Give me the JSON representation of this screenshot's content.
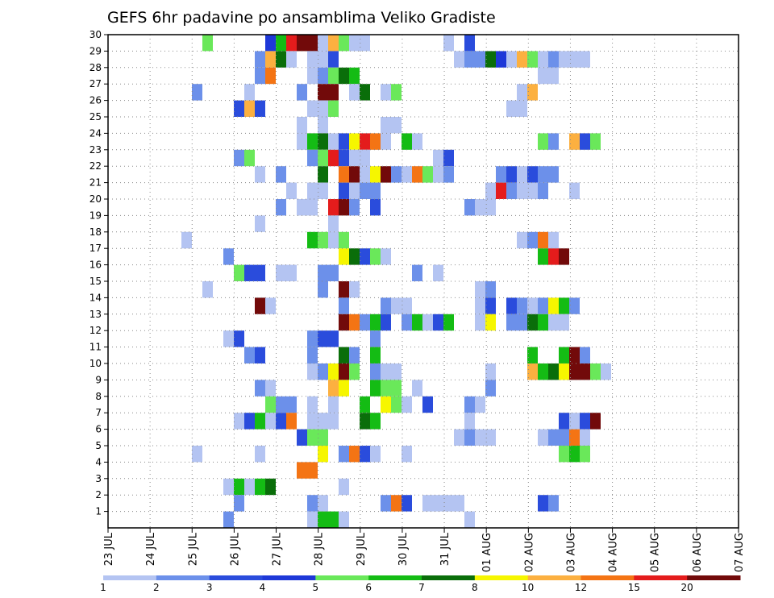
{
  "chart_data": {
    "type": "heatmap",
    "title": "GEFS 6hr padavine po ansamblima Veliko Gradiste",
    "ylim": [
      0,
      30
    ],
    "ytick_labels": [
      "1",
      "2",
      "3",
      "4",
      "5",
      "6",
      "7",
      "8",
      "9",
      "10",
      "11",
      "12",
      "13",
      "14",
      "15",
      "16",
      "17",
      "18",
      "19",
      "20",
      "21",
      "22",
      "23",
      "24",
      "25",
      "26",
      "27",
      "28",
      "29",
      "30"
    ],
    "x_tick_labels": [
      "23 JUL",
      "24 JUL",
      "25 JUL",
      "26 JUL",
      "27 JUL",
      "28 JUL",
      "29 JUL",
      "30 JUL",
      "31 JUL",
      "01 AUG",
      "02 AUG",
      "03 AUG",
      "04 AUG",
      "05 AUG",
      "06 AUG",
      "07 AUG"
    ],
    "grid": true,
    "color_scale": {
      "colors": [
        "#b4c4f2",
        "#6c90ea",
        "#2a4cdc",
        "#1e38d8",
        "#6ae85a",
        "#14bc14",
        "#0a6e0a",
        "#f6f600",
        "#fcb040",
        "#f47414",
        "#e41c1c",
        "#720a0a"
      ],
      "labels": [
        "1",
        "2",
        "3",
        "4",
        "5",
        "6",
        "7",
        "8",
        "10",
        "12",
        "15",
        "20"
      ]
    },
    "cells": [
      [
        30,
        9,
        5
      ],
      [
        30,
        15,
        4
      ],
      [
        30,
        16,
        6
      ],
      [
        30,
        17,
        11
      ],
      [
        30,
        18,
        12
      ],
      [
        30,
        19,
        12
      ],
      [
        30,
        20,
        1
      ],
      [
        30,
        21,
        9
      ],
      [
        30,
        22,
        5
      ],
      [
        30,
        23,
        1
      ],
      [
        30,
        24,
        1
      ],
      [
        30,
        32,
        1
      ],
      [
        30,
        34,
        3
      ],
      [
        29,
        14,
        2
      ],
      [
        29,
        15,
        9
      ],
      [
        29,
        16,
        7
      ],
      [
        29,
        17,
        1
      ],
      [
        29,
        19,
        1
      ],
      [
        29,
        20,
        1
      ],
      [
        29,
        21,
        3
      ],
      [
        29,
        33,
        1
      ],
      [
        29,
        34,
        2
      ],
      [
        29,
        35,
        2
      ],
      [
        29,
        36,
        7
      ],
      [
        29,
        37,
        4
      ],
      [
        29,
        38,
        1
      ],
      [
        29,
        39,
        9
      ],
      [
        29,
        40,
        5
      ],
      [
        29,
        41,
        1
      ],
      [
        29,
        42,
        2
      ],
      [
        29,
        43,
        1
      ],
      [
        29,
        44,
        1
      ],
      [
        29,
        45,
        1
      ],
      [
        28,
        14,
        2
      ],
      [
        28,
        15,
        10
      ],
      [
        28,
        19,
        1
      ],
      [
        28,
        20,
        2
      ],
      [
        28,
        21,
        5
      ],
      [
        28,
        22,
        7
      ],
      [
        28,
        23,
        6
      ],
      [
        28,
        41,
        1
      ],
      [
        28,
        42,
        1
      ],
      [
        27,
        8,
        2
      ],
      [
        27,
        13,
        1
      ],
      [
        27,
        18,
        2
      ],
      [
        27,
        20,
        12
      ],
      [
        27,
        21,
        12
      ],
      [
        27,
        23,
        1
      ],
      [
        27,
        24,
        7
      ],
      [
        27,
        26,
        1
      ],
      [
        27,
        27,
        5
      ],
      [
        27,
        39,
        1
      ],
      [
        27,
        40,
        9
      ],
      [
        26,
        12,
        3
      ],
      [
        26,
        13,
        9
      ],
      [
        26,
        14,
        3
      ],
      [
        26,
        19,
        1
      ],
      [
        26,
        20,
        1
      ],
      [
        26,
        21,
        5
      ],
      [
        26,
        38,
        1
      ],
      [
        26,
        39,
        1
      ],
      [
        25,
        18,
        1
      ],
      [
        25,
        20,
        1
      ],
      [
        25,
        26,
        1
      ],
      [
        25,
        27,
        1
      ],
      [
        24,
        18,
        1
      ],
      [
        24,
        19,
        6
      ],
      [
        24,
        20,
        7
      ],
      [
        24,
        21,
        1
      ],
      [
        24,
        22,
        3
      ],
      [
        24,
        23,
        8
      ],
      [
        24,
        24,
        11
      ],
      [
        24,
        25,
        10
      ],
      [
        24,
        26,
        1
      ],
      [
        24,
        28,
        6
      ],
      [
        24,
        29,
        1
      ],
      [
        24,
        41,
        5
      ],
      [
        24,
        42,
        2
      ],
      [
        24,
        44,
        9
      ],
      [
        24,
        45,
        3
      ],
      [
        24,
        46,
        5
      ],
      [
        23,
        12,
        2
      ],
      [
        23,
        13,
        5
      ],
      [
        23,
        19,
        2
      ],
      [
        23,
        20,
        5
      ],
      [
        23,
        21,
        11
      ],
      [
        23,
        22,
        3
      ],
      [
        23,
        23,
        1
      ],
      [
        23,
        24,
        1
      ],
      [
        23,
        31,
        1
      ],
      [
        23,
        32,
        3
      ],
      [
        22,
        14,
        1
      ],
      [
        22,
        16,
        2
      ],
      [
        22,
        20,
        7
      ],
      [
        22,
        22,
        10
      ],
      [
        22,
        23,
        12
      ],
      [
        22,
        24,
        1
      ],
      [
        22,
        25,
        8
      ],
      [
        22,
        26,
        12
      ],
      [
        22,
        27,
        2
      ],
      [
        22,
        28,
        1
      ],
      [
        22,
        29,
        10
      ],
      [
        22,
        30,
        5
      ],
      [
        22,
        31,
        1
      ],
      [
        22,
        32,
        2
      ],
      [
        22,
        37,
        2
      ],
      [
        22,
        38,
        3
      ],
      [
        22,
        39,
        1
      ],
      [
        22,
        40,
        3
      ],
      [
        22,
        41,
        2
      ],
      [
        22,
        42,
        2
      ],
      [
        21,
        17,
        1
      ],
      [
        21,
        19,
        1
      ],
      [
        21,
        20,
        1
      ],
      [
        21,
        22,
        3
      ],
      [
        21,
        23,
        1
      ],
      [
        21,
        24,
        2
      ],
      [
        21,
        25,
        2
      ],
      [
        21,
        36,
        1
      ],
      [
        21,
        37,
        11
      ],
      [
        21,
        38,
        2
      ],
      [
        21,
        39,
        1
      ],
      [
        21,
        40,
        1
      ],
      [
        21,
        41,
        2
      ],
      [
        21,
        44,
        1
      ],
      [
        20,
        16,
        2
      ],
      [
        20,
        18,
        1
      ],
      [
        20,
        19,
        1
      ],
      [
        20,
        21,
        11
      ],
      [
        20,
        22,
        12
      ],
      [
        20,
        23,
        2
      ],
      [
        20,
        25,
        3
      ],
      [
        20,
        34,
        2
      ],
      [
        20,
        35,
        1
      ],
      [
        20,
        36,
        1
      ],
      [
        19,
        14,
        1
      ],
      [
        19,
        21,
        1
      ],
      [
        18,
        7,
        1
      ],
      [
        18,
        19,
        6
      ],
      [
        18,
        20,
        5
      ],
      [
        18,
        21,
        1
      ],
      [
        18,
        22,
        5
      ],
      [
        18,
        39,
        1
      ],
      [
        18,
        40,
        2
      ],
      [
        18,
        41,
        10
      ],
      [
        18,
        42,
        1
      ],
      [
        17,
        11,
        2
      ],
      [
        17,
        22,
        8
      ],
      [
        17,
        23,
        7
      ],
      [
        17,
        24,
        3
      ],
      [
        17,
        25,
        5
      ],
      [
        17,
        26,
        1
      ],
      [
        17,
        41,
        6
      ],
      [
        17,
        42,
        11
      ],
      [
        17,
        43,
        12
      ],
      [
        16,
        12,
        5
      ],
      [
        16,
        13,
        3
      ],
      [
        16,
        14,
        3
      ],
      [
        16,
        16,
        1
      ],
      [
        16,
        17,
        1
      ],
      [
        16,
        20,
        2
      ],
      [
        16,
        21,
        2
      ],
      [
        16,
        29,
        2
      ],
      [
        16,
        31,
        1
      ],
      [
        15,
        9,
        1
      ],
      [
        15,
        20,
        2
      ],
      [
        15,
        22,
        12
      ],
      [
        15,
        23,
        1
      ],
      [
        15,
        35,
        1
      ],
      [
        15,
        36,
        2
      ],
      [
        14,
        14,
        12
      ],
      [
        14,
        15,
        1
      ],
      [
        14,
        22,
        2
      ],
      [
        14,
        26,
        2
      ],
      [
        14,
        27,
        1
      ],
      [
        14,
        28,
        1
      ],
      [
        14,
        35,
        1
      ],
      [
        14,
        36,
        3
      ],
      [
        14,
        38,
        3
      ],
      [
        14,
        39,
        2
      ],
      [
        14,
        40,
        1
      ],
      [
        14,
        41,
        2
      ],
      [
        14,
        42,
        8
      ],
      [
        14,
        43,
        6
      ],
      [
        14,
        44,
        2
      ],
      [
        13,
        22,
        12
      ],
      [
        13,
        23,
        10
      ],
      [
        13,
        24,
        2
      ],
      [
        13,
        25,
        6
      ],
      [
        13,
        26,
        3
      ],
      [
        13,
        28,
        2
      ],
      [
        13,
        29,
        6
      ],
      [
        13,
        30,
        1
      ],
      [
        13,
        31,
        3
      ],
      [
        13,
        32,
        6
      ],
      [
        13,
        35,
        1
      ],
      [
        13,
        36,
        8
      ],
      [
        13,
        38,
        2
      ],
      [
        13,
        39,
        2
      ],
      [
        13,
        40,
        7
      ],
      [
        13,
        41,
        6
      ],
      [
        13,
        42,
        1
      ],
      [
        13,
        43,
        1
      ],
      [
        12,
        11,
        1
      ],
      [
        12,
        12,
        3
      ],
      [
        12,
        19,
        2
      ],
      [
        12,
        20,
        3
      ],
      [
        12,
        21,
        3
      ],
      [
        12,
        25,
        2
      ],
      [
        11,
        13,
        2
      ],
      [
        11,
        14,
        3
      ],
      [
        11,
        19,
        2
      ],
      [
        11,
        22,
        7
      ],
      [
        11,
        23,
        2
      ],
      [
        11,
        25,
        6
      ],
      [
        11,
        40,
        6
      ],
      [
        11,
        43,
        6
      ],
      [
        11,
        44,
        12
      ],
      [
        11,
        45,
        2
      ],
      [
        10,
        19,
        1
      ],
      [
        10,
        20,
        2
      ],
      [
        10,
        21,
        8
      ],
      [
        10,
        22,
        12
      ],
      [
        10,
        23,
        5
      ],
      [
        10,
        25,
        2
      ],
      [
        10,
        26,
        1
      ],
      [
        10,
        27,
        1
      ],
      [
        10,
        36,
        1
      ],
      [
        10,
        40,
        9
      ],
      [
        10,
        41,
        6
      ],
      [
        10,
        42,
        7
      ],
      [
        10,
        43,
        8
      ],
      [
        10,
        44,
        12
      ],
      [
        10,
        45,
        12
      ],
      [
        10,
        46,
        5
      ],
      [
        10,
        47,
        1
      ],
      [
        9,
        14,
        2
      ],
      [
        9,
        15,
        1
      ],
      [
        9,
        21,
        9
      ],
      [
        9,
        22,
        8
      ],
      [
        9,
        25,
        6
      ],
      [
        9,
        26,
        5
      ],
      [
        9,
        27,
        5
      ],
      [
        9,
        29,
        1
      ],
      [
        9,
        36,
        2
      ],
      [
        8,
        15,
        5
      ],
      [
        8,
        16,
        2
      ],
      [
        8,
        17,
        2
      ],
      [
        8,
        19,
        1
      ],
      [
        8,
        21,
        1
      ],
      [
        8,
        24,
        6
      ],
      [
        8,
        26,
        8
      ],
      [
        8,
        27,
        5
      ],
      [
        8,
        28,
        1
      ],
      [
        8,
        30,
        3
      ],
      [
        8,
        34,
        2
      ],
      [
        8,
        35,
        1
      ],
      [
        7,
        12,
        1
      ],
      [
        7,
        13,
        3
      ],
      [
        7,
        14,
        6
      ],
      [
        7,
        15,
        1
      ],
      [
        7,
        16,
        3
      ],
      [
        7,
        17,
        10
      ],
      [
        7,
        19,
        1
      ],
      [
        7,
        20,
        1
      ],
      [
        7,
        21,
        1
      ],
      [
        7,
        24,
        7
      ],
      [
        7,
        25,
        6
      ],
      [
        7,
        34,
        1
      ],
      [
        7,
        43,
        3
      ],
      [
        7,
        44,
        1
      ],
      [
        7,
        45,
        3
      ],
      [
        7,
        46,
        12
      ],
      [
        6,
        18,
        3
      ],
      [
        6,
        19,
        5
      ],
      [
        6,
        20,
        5
      ],
      [
        6,
        33,
        1
      ],
      [
        6,
        34,
        2
      ],
      [
        6,
        35,
        1
      ],
      [
        6,
        36,
        1
      ],
      [
        6,
        41,
        1
      ],
      [
        6,
        42,
        2
      ],
      [
        6,
        43,
        2
      ],
      [
        6,
        44,
        10
      ],
      [
        6,
        45,
        1
      ],
      [
        5,
        8,
        1
      ],
      [
        5,
        14,
        1
      ],
      [
        5,
        20,
        8
      ],
      [
        5,
        22,
        2
      ],
      [
        5,
        23,
        10
      ],
      [
        5,
        24,
        3
      ],
      [
        5,
        25,
        1
      ],
      [
        5,
        28,
        1
      ],
      [
        5,
        43,
        5
      ],
      [
        5,
        44,
        6
      ],
      [
        5,
        45,
        5
      ],
      [
        4,
        18,
        10
      ],
      [
        4,
        19,
        10
      ],
      [
        3,
        11,
        1
      ],
      [
        3,
        12,
        6
      ],
      [
        3,
        13,
        1
      ],
      [
        3,
        14,
        6
      ],
      [
        3,
        15,
        7
      ],
      [
        3,
        22,
        1
      ],
      [
        2,
        12,
        2
      ],
      [
        2,
        19,
        2
      ],
      [
        2,
        20,
        1
      ],
      [
        2,
        26,
        2
      ],
      [
        2,
        27,
        10
      ],
      [
        2,
        28,
        3
      ],
      [
        2,
        30,
        1
      ],
      [
        2,
        31,
        1
      ],
      [
        2,
        32,
        1
      ],
      [
        2,
        33,
        1
      ],
      [
        2,
        41,
        3
      ],
      [
        2,
        42,
        2
      ],
      [
        1,
        11,
        2
      ],
      [
        1,
        19,
        1
      ],
      [
        1,
        20,
        6
      ],
      [
        1,
        21,
        6
      ],
      [
        1,
        22,
        1
      ],
      [
        1,
        34,
        1
      ]
    ]
  }
}
